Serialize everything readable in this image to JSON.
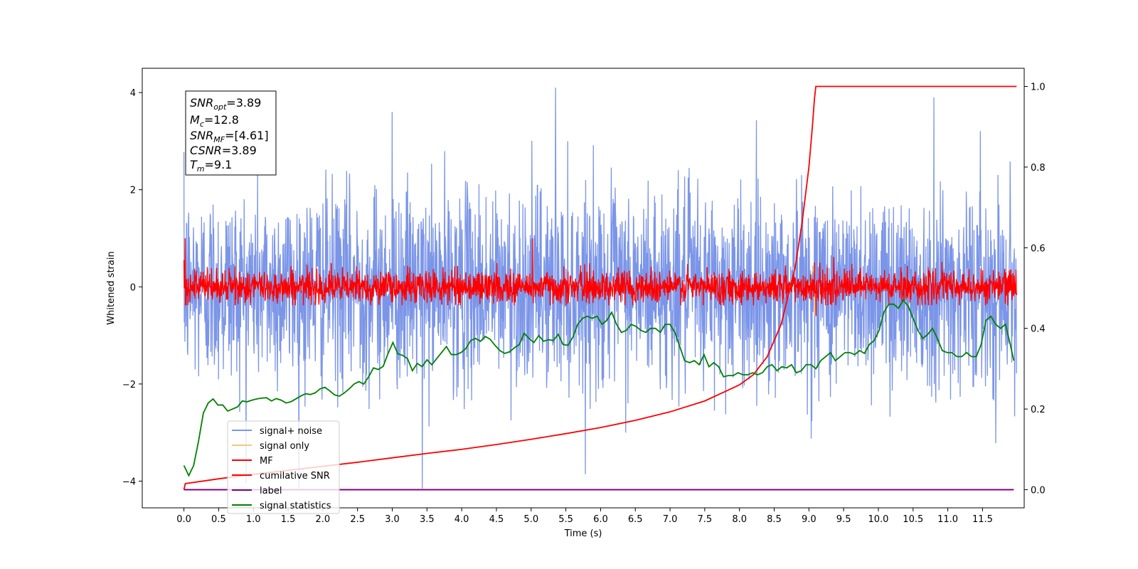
{
  "chart_data": {
    "type": "line",
    "xlabel": "Time (s)",
    "ylabel": "Whitened strain",
    "xlim": [
      -0.6,
      12.1
    ],
    "ylim": [
      -4.55,
      4.5
    ],
    "y2lim": [
      -0.045,
      1.045
    ],
    "x_ticks": [
      "0.0",
      "0.5",
      "1.0",
      "1.5",
      "2.0",
      "2.5",
      "3.0",
      "3.5",
      "4.0",
      "4.5",
      "5.0",
      "5.5",
      "6.0",
      "6.5",
      "7.0",
      "7.5",
      "8.0",
      "8.5",
      "9.0",
      "9.5",
      "10.0",
      "10.5",
      "11.0",
      "11.5"
    ],
    "y_ticks": [
      "4",
      "2",
      "0",
      "−2",
      "−4"
    ],
    "y2_ticks": [
      "1.0",
      "0.8",
      "0.6",
      "0.4",
      "0.2",
      "0.0"
    ],
    "info_box": [
      {
        "main": "SNR",
        "sub": "opt",
        "rest": "=3.89"
      },
      {
        "main": "M",
        "sub": "c",
        "rest": "=12.8"
      },
      {
        "main": "SNR",
        "sub": "MF",
        "rest": "=[4.61]"
      },
      {
        "main": "CSNR",
        "sub": "",
        "rest": "=3.89"
      },
      {
        "main": "T",
        "sub": "m",
        "rest": "=9.1"
      }
    ],
    "legend": {
      "placement": "lower-left",
      "items": [
        {
          "label": "signal+ noise",
          "color": "#7b95e8"
        },
        {
          "label": "signal only",
          "color": "#f5c87a"
        },
        {
          "label": "MF",
          "color": "#ff0000"
        },
        {
          "label": "cumilative SNR",
          "color": "#ff0000"
        },
        {
          "label": "label",
          "color": "#800080"
        },
        {
          "label": "signal statistics",
          "color": "#008000"
        }
      ]
    },
    "series": [
      {
        "name": "signal+ noise",
        "axis": "left",
        "color": "#7b95e8",
        "x_range": [
          0,
          11.99
        ],
        "mean": 0.0,
        "std": 1.0,
        "min": -4.15,
        "max": 4.1
      },
      {
        "name": "signal only",
        "axis": "left",
        "color": "#f5c87a",
        "points": [
          [
            9.0,
            0.0
          ],
          [
            9.07,
            0.45
          ],
          [
            9.09,
            -0.6
          ],
          [
            9.1,
            0.0
          ]
        ]
      },
      {
        "name": "MF",
        "axis": "left",
        "color": "#ff0000",
        "x_range": [
          0,
          11.99
        ],
        "mean": 0.0,
        "std": 0.17,
        "max": 1.0,
        "points": [
          [
            0.0,
            0.55
          ],
          [
            0.02,
            1.0
          ],
          [
            5.02,
            1.0
          ],
          [
            9.08,
            0.5
          ],
          [
            9.1,
            -0.6
          ]
        ]
      },
      {
        "name": "cumilative SNR",
        "axis": "right",
        "color": "#ff0000",
        "x": [
          0,
          0.02,
          0.5,
          1,
          1.5,
          2,
          2.5,
          3,
          3.5,
          4,
          4.5,
          5,
          5.5,
          6,
          6.5,
          7,
          7.5,
          8,
          8.2,
          8.4,
          8.6,
          8.8,
          8.9,
          9.0,
          9.05,
          9.08,
          9.1,
          11.99
        ],
        "values": [
          0.0,
          0.015,
          0.027,
          0.038,
          0.048,
          0.058,
          0.068,
          0.079,
          0.09,
          0.1,
          0.112,
          0.125,
          0.139,
          0.154,
          0.172,
          0.193,
          0.22,
          0.26,
          0.285,
          0.33,
          0.41,
          0.55,
          0.66,
          0.8,
          0.9,
          0.97,
          1.0,
          1.0
        ]
      },
      {
        "name": "label",
        "axis": "right",
        "color": "#800080",
        "x": [
          0,
          11.95
        ],
        "values": [
          0.0,
          0.0
        ]
      },
      {
        "name": "signal statistics",
        "axis": "right",
        "color": "#008000",
        "x": [
          0,
          0.07,
          0.14,
          0.21,
          0.28,
          0.35,
          0.42,
          0.49,
          0.56,
          0.63,
          0.7,
          0.77,
          0.84,
          0.91,
          0.98,
          1.05,
          1.12,
          1.19,
          1.26,
          1.33,
          1.4,
          1.47,
          1.54,
          1.61,
          1.68,
          1.75,
          1.82,
          1.89,
          1.96,
          2.03,
          2.1,
          2.17,
          2.24,
          2.31,
          2.38,
          2.45,
          2.52,
          2.59,
          2.66,
          2.73,
          2.8,
          2.87,
          2.94,
          3.01,
          3.08,
          3.15,
          3.22,
          3.29,
          3.36,
          3.43,
          3.5,
          3.57,
          3.64,
          3.71,
          3.78,
          3.85,
          3.92,
          3.99,
          4.06,
          4.13,
          4.2,
          4.27,
          4.34,
          4.41,
          4.48,
          4.55,
          4.62,
          4.69,
          4.76,
          4.83,
          4.9,
          4.97,
          5.04,
          5.11,
          5.18,
          5.25,
          5.32,
          5.39,
          5.46,
          5.53,
          5.6,
          5.67,
          5.74,
          5.81,
          5.88,
          5.95,
          6.02,
          6.09,
          6.16,
          6.23,
          6.3,
          6.37,
          6.44,
          6.51,
          6.58,
          6.65,
          6.72,
          6.79,
          6.86,
          6.93,
          7.0,
          7.07,
          7.14,
          7.21,
          7.28,
          7.35,
          7.42,
          7.49,
          7.56,
          7.63,
          7.7,
          7.77,
          7.84,
          7.91,
          7.98,
          8.05,
          8.12,
          8.19,
          8.26,
          8.33,
          8.4,
          8.47,
          8.54,
          8.61,
          8.68,
          8.75,
          8.82,
          8.89,
          8.96,
          9.03,
          9.1,
          9.17,
          9.24,
          9.31,
          9.38,
          9.45,
          9.52,
          9.59,
          9.66,
          9.73,
          9.8,
          9.87,
          9.94,
          10.01,
          10.08,
          10.15,
          10.22,
          10.29,
          10.36,
          10.43,
          10.5,
          10.57,
          10.64,
          10.71,
          10.78,
          10.85,
          10.92,
          10.99,
          11.06,
          11.13,
          11.2,
          11.27,
          11.34,
          11.41,
          11.48,
          11.55,
          11.62,
          11.69,
          11.76,
          11.83,
          11.9,
          11.95
        ],
        "values": [
          0.06,
          0.035,
          0.06,
          0.12,
          0.19,
          0.215,
          0.225,
          0.21,
          0.21,
          0.195,
          0.2,
          0.205,
          0.22,
          0.218,
          0.222,
          0.225,
          0.227,
          0.228,
          0.22,
          0.226,
          0.222,
          0.215,
          0.218,
          0.225,
          0.232,
          0.238,
          0.236,
          0.24,
          0.25,
          0.254,
          0.245,
          0.235,
          0.232,
          0.24,
          0.25,
          0.262,
          0.268,
          0.262,
          0.28,
          0.302,
          0.298,
          0.306,
          0.338,
          0.365,
          0.337,
          0.333,
          0.325,
          0.295,
          0.313,
          0.305,
          0.322,
          0.31,
          0.325,
          0.34,
          0.355,
          0.335,
          0.335,
          0.34,
          0.35,
          0.37,
          0.375,
          0.368,
          0.38,
          0.373,
          0.358,
          0.345,
          0.338,
          0.342,
          0.352,
          0.36,
          0.388,
          0.375,
          0.365,
          0.382,
          0.368,
          0.372,
          0.37,
          0.385,
          0.36,
          0.358,
          0.378,
          0.41,
          0.425,
          0.43,
          0.425,
          0.43,
          0.41,
          0.42,
          0.44,
          0.41,
          0.39,
          0.395,
          0.41,
          0.405,
          0.395,
          0.39,
          0.4,
          0.4,
          0.39,
          0.41,
          0.41,
          0.39,
          0.355,
          0.32,
          0.315,
          0.32,
          0.31,
          0.335,
          0.305,
          0.315,
          0.305,
          0.28,
          0.283,
          0.283,
          0.29,
          0.285,
          0.285,
          0.29,
          0.285,
          0.29,
          0.305,
          0.31,
          0.295,
          0.305,
          0.302,
          0.31,
          0.29,
          0.295,
          0.31,
          0.31,
          0.3,
          0.32,
          0.33,
          0.34,
          0.32,
          0.33,
          0.34,
          0.34,
          0.335,
          0.345,
          0.338,
          0.36,
          0.37,
          0.395,
          0.44,
          0.46,
          0.46,
          0.45,
          0.47,
          0.455,
          0.425,
          0.395,
          0.375,
          0.385,
          0.4,
          0.375,
          0.345,
          0.34,
          0.34,
          0.33,
          0.33,
          0.34,
          0.33,
          0.33,
          0.36,
          0.42,
          0.43,
          0.41,
          0.4,
          0.41,
          0.36,
          0.32
        ]
      }
    ]
  }
}
